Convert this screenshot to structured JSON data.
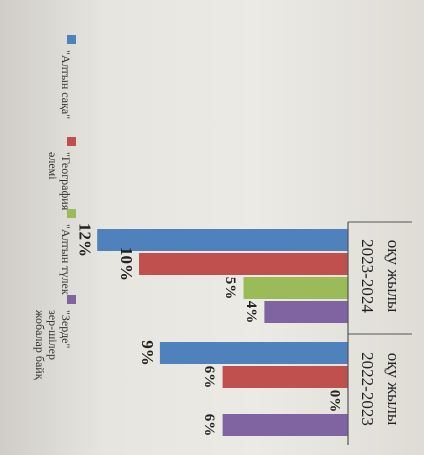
{
  "chart_data": {
    "type": "bar",
    "orientation": "rotated-90",
    "categories": [
      "2022-2023 оқу жылы",
      "2023-2024 оқу жылы"
    ],
    "category_lines": [
      [
        "2022-2023",
        "оқу жылы"
      ],
      [
        "2023-2024",
        "оқу жылы"
      ]
    ],
    "series": [
      {
        "name": "\"Алтын сақа\"",
        "name_lines": [
          "\"Алтын сақа\""
        ],
        "values": [
          9,
          12
        ],
        "labels": [
          "9%",
          "12%"
        ],
        "color": "#4f81bd"
      },
      {
        "name": "\"География\" әлемі",
        "name_lines": [
          "\"География\"",
          "әлемі"
        ],
        "values": [
          6,
          10
        ],
        "labels": [
          "6%",
          "10%"
        ],
        "color": "#c0504d"
      },
      {
        "name": "\"Алтын түлек\"",
        "name_lines": [
          "\"Алтын түлек\""
        ],
        "values": [
          0,
          5
        ],
        "labels": [
          "0%",
          "5%"
        ],
        "color": "#9bbb59"
      },
      {
        "name": "\"Зерде\" зерттеушілер жобалар байқ",
        "name_lines": [
          "\"Зерде\"",
          "зер-шілер",
          "жобалар байқ"
        ],
        "values": [
          6,
          4
        ],
        "labels": [
          "6%",
          "4%"
        ],
        "color": "#8064a2"
      }
    ],
    "ylim": [
      0,
      13
    ],
    "grid": false,
    "legend_position": "right"
  }
}
